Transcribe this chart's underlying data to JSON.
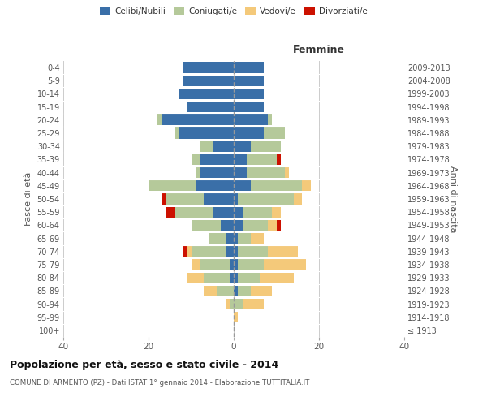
{
  "age_groups": [
    "100+",
    "95-99",
    "90-94",
    "85-89",
    "80-84",
    "75-79",
    "70-74",
    "65-69",
    "60-64",
    "55-59",
    "50-54",
    "45-49",
    "40-44",
    "35-39",
    "30-34",
    "25-29",
    "20-24",
    "15-19",
    "10-14",
    "5-9",
    "0-4"
  ],
  "birth_years": [
    "≤ 1913",
    "1914-1918",
    "1919-1923",
    "1924-1928",
    "1929-1933",
    "1934-1938",
    "1939-1943",
    "1944-1948",
    "1949-1953",
    "1954-1958",
    "1959-1963",
    "1964-1968",
    "1969-1973",
    "1974-1978",
    "1979-1983",
    "1984-1988",
    "1989-1993",
    "1994-1998",
    "1999-2003",
    "2004-2008",
    "2009-2013"
  ],
  "males": {
    "celibi": [
      0,
      0,
      0,
      0,
      1,
      1,
      2,
      2,
      3,
      5,
      7,
      9,
      8,
      8,
      5,
      13,
      17,
      11,
      13,
      12,
      12
    ],
    "coniugati": [
      0,
      0,
      1,
      4,
      6,
      7,
      8,
      4,
      7,
      9,
      9,
      11,
      1,
      2,
      3,
      1,
      1,
      0,
      0,
      0,
      0
    ],
    "vedovi": [
      0,
      0,
      1,
      3,
      4,
      2,
      1,
      0,
      0,
      0,
      0,
      0,
      0,
      0,
      0,
      0,
      0,
      0,
      0,
      0,
      0
    ],
    "divorziati": [
      0,
      0,
      0,
      0,
      0,
      0,
      1,
      0,
      0,
      2,
      1,
      0,
      0,
      0,
      0,
      0,
      0,
      0,
      0,
      0,
      0
    ]
  },
  "females": {
    "nubili": [
      0,
      0,
      0,
      1,
      1,
      1,
      1,
      1,
      2,
      2,
      1,
      4,
      3,
      3,
      4,
      7,
      8,
      7,
      7,
      7,
      7
    ],
    "coniugate": [
      0,
      0,
      2,
      3,
      5,
      6,
      7,
      3,
      6,
      7,
      13,
      12,
      9,
      7,
      7,
      5,
      1,
      0,
      0,
      0,
      0
    ],
    "vedove": [
      0,
      1,
      5,
      5,
      8,
      10,
      7,
      3,
      2,
      2,
      2,
      2,
      1,
      0,
      0,
      0,
      0,
      0,
      0,
      0,
      0
    ],
    "divorziate": [
      0,
      0,
      0,
      0,
      0,
      0,
      0,
      0,
      1,
      0,
      0,
      0,
      0,
      1,
      0,
      0,
      0,
      0,
      0,
      0,
      0
    ]
  },
  "colors": {
    "celibi": "#3A6FA8",
    "coniugati": "#B5C99A",
    "vedovi": "#F4C97A",
    "divorziati": "#CC1100"
  },
  "title": "Popolazione per età, sesso e stato civile - 2014",
  "subtitle": "COMUNE DI ARMENTO (PZ) - Dati ISTAT 1° gennaio 2014 - Elaborazione TUTTITALIA.IT",
  "ylabel": "Fasce di età",
  "y2label": "Anni di nascita",
  "xlabel_right": "Femmine",
  "xlim": 40,
  "background_color": "#ffffff",
  "grid_color": "#cccccc"
}
